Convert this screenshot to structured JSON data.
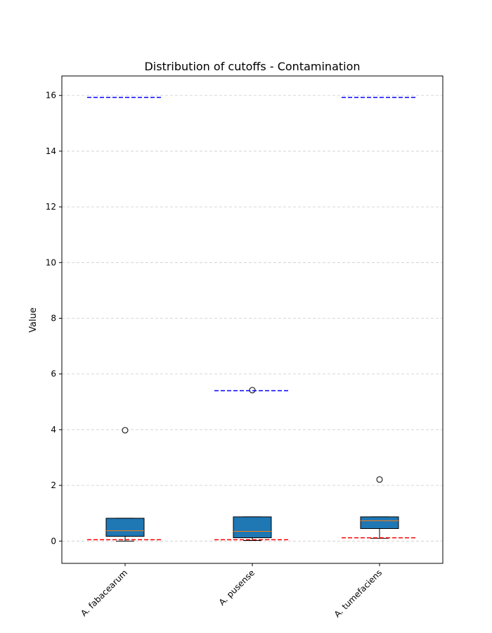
{
  "chart_data": {
    "type": "box",
    "title": "Distribution of cutoffs - Contamination",
    "ylabel": "Value",
    "xlabel": "",
    "ylim": [
      -0.8,
      16.7
    ],
    "yticks": [
      "0",
      "2",
      "4",
      "6",
      "8",
      "10",
      "12",
      "14",
      "16"
    ],
    "grid": "y-dashed",
    "box_color": "#1f77b4",
    "median_color": "#ff7f0e",
    "upper_line_color": "#0000ff",
    "lower_line_color": "#ff0000",
    "categories": [
      "A. fabacearum",
      "A. pusense",
      "A. tumefaciens"
    ],
    "boxes": [
      {
        "whisker_low": 0.0,
        "q1": 0.17,
        "median": 0.37,
        "q3": 0.82,
        "whisker_high": 0.82,
        "outliers": [
          3.98
        ],
        "upper_line": 15.93,
        "lower_line": 0.05
      },
      {
        "whisker_low": 0.02,
        "q1": 0.12,
        "median": 0.35,
        "q3": 0.87,
        "whisker_high": 0.87,
        "outliers": [
          5.42
        ],
        "upper_line": 5.4,
        "lower_line": 0.05
      },
      {
        "whisker_low": 0.1,
        "q1": 0.45,
        "median": 0.73,
        "q3": 0.87,
        "whisker_high": 0.87,
        "outliers": [
          2.21
        ],
        "upper_line": 15.93,
        "lower_line": 0.12
      }
    ]
  }
}
